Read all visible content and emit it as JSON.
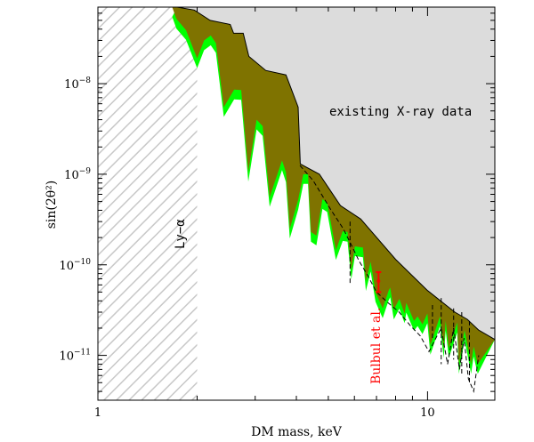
{
  "chart_data": {
    "type": "area",
    "title": "",
    "xlabel": "DM mass, keV",
    "ylabel": "sin(2θ²)",
    "xscale": "log",
    "yscale": "log",
    "xlim": [
      1.0,
      16.0
    ],
    "ylim": [
      3.2e-12,
      7e-08
    ],
    "x_ticks": [
      {
        "value": 1,
        "label": "1"
      },
      {
        "value": 10,
        "label": "10"
      }
    ],
    "y_ticks": [
      {
        "value": 1e-08,
        "base": "10",
        "exp": "−8"
      },
      {
        "value": 1e-09,
        "base": "10",
        "exp": "−9"
      },
      {
        "value": 1e-10,
        "base": "10",
        "exp": "−10"
      },
      {
        "value": 1e-11,
        "base": "10",
        "exp": "−11"
      }
    ],
    "annotations": {
      "xray": "existing X-ray data",
      "lya": "Ly−α",
      "bulbul": "Bulbul et al."
    },
    "colors": {
      "xray_fill": "#dcdcdc",
      "olive": "#7f7300",
      "green": "#00ff00",
      "hatch": "#c8c8c8",
      "red": "#ff0000"
    },
    "lya_bound": {
      "x_max": 2.0,
      "label": "Ly−α"
    },
    "xray_exclusion": {
      "name": "existing X-ray data",
      "boundary": [
        [
          1.74,
          7e-08
        ],
        [
          1.96,
          6.5e-08
        ],
        [
          2.19,
          5e-08
        ],
        [
          2.52,
          4.5e-08
        ],
        [
          2.58,
          3.6e-08
        ],
        [
          2.76,
          3.6e-08
        ],
        [
          2.87,
          2e-08
        ],
        [
          3.23,
          1.4e-08
        ],
        [
          3.72,
          1.25e-08
        ],
        [
          4.05,
          5.5e-09
        ],
        [
          4.11,
          1.3e-09
        ],
        [
          4.7,
          1e-09
        ],
        [
          5.44,
          4.5e-10
        ],
        [
          6.27,
          3.2e-10
        ],
        [
          8.0,
          1.15e-10
        ],
        [
          10.0,
          5.2e-11
        ],
        [
          12.1,
          3e-11
        ],
        [
          13.2,
          2.5e-11
        ],
        [
          14.3,
          1.9e-11
        ],
        [
          16.0,
          1.5e-11
        ]
      ]
    },
    "olive_band": {
      "name": "model band",
      "lower": [
        [
          1.68,
          7e-08
        ],
        [
          1.73,
          5.2e-08
        ],
        [
          1.85,
          3.9e-08
        ],
        [
          2.0,
          1.9e-08
        ],
        [
          2.1,
          3e-08
        ],
        [
          2.2,
          3.4e-08
        ],
        [
          2.28,
          2.8e-08
        ],
        [
          2.41,
          5.5e-09
        ],
        [
          2.59,
          8.6e-09
        ],
        [
          2.72,
          8.5e-09
        ],
        [
          2.86,
          1.06e-09
        ],
        [
          3.03,
          4e-09
        ],
        [
          3.16,
          3.4e-09
        ],
        [
          3.32,
          5.6e-10
        ],
        [
          3.62,
          1.42e-09
        ],
        [
          3.72,
          1.05e-09
        ],
        [
          3.82,
          2.5e-10
        ],
        [
          4.05,
          5.2e-10
        ],
        [
          4.2,
          1e-09
        ],
        [
          4.34,
          1e-09
        ],
        [
          4.43,
          2.3e-10
        ],
        [
          4.6,
          2.1e-10
        ],
        [
          4.8,
          5.3e-10
        ],
        [
          4.96,
          4.9e-10
        ],
        [
          5.27,
          1.45e-10
        ],
        [
          5.53,
          2.35e-10
        ],
        [
          5.72,
          2.3e-10
        ],
        [
          5.87,
          8.8e-11
        ],
        [
          6.02,
          1.6e-10
        ],
        [
          6.37,
          1.55e-10
        ],
        [
          6.5,
          6.6e-11
        ],
        [
          6.72,
          1.08e-10
        ],
        [
          6.95,
          5e-11
        ],
        [
          7.31,
          3.3e-11
        ],
        [
          7.62,
          5.2e-11
        ],
        [
          7.7,
          5.6e-11
        ],
        [
          7.9,
          3.2e-11
        ],
        [
          8.21,
          4.2e-11
        ],
        [
          8.52,
          2.9e-11
        ],
        [
          8.62,
          3.8e-11
        ],
        [
          9.1,
          2.4e-11
        ],
        [
          9.33,
          2.7e-11
        ],
        [
          9.65,
          2.2e-11
        ],
        [
          9.99,
          2.9e-11
        ],
        [
          10.2,
          1.3e-11
        ],
        [
          10.9,
          2.7e-11
        ],
        [
          11.2,
          1.2e-11
        ],
        [
          11.35,
          2.4e-11
        ],
        [
          11.6,
          1.2e-11
        ],
        [
          12.3,
          2.3e-11
        ],
        [
          12.45,
          8e-12
        ],
        [
          12.95,
          1.9e-11
        ],
        [
          13.4,
          1e-11
        ],
        [
          13.55,
          8e-12
        ],
        [
          13.8,
          1.25e-11
        ],
        [
          14.2,
          8e-12
        ]
      ],
      "green_pad": 1.28
    },
    "dashed_curve": {
      "name": "dashed model",
      "points": [
        [
          4.1,
          1.25e-09
        ],
        [
          4.5,
          8.5e-10
        ],
        [
          5.1,
          4e-10
        ],
        [
          5.55,
          2.5e-10
        ],
        [
          5.9,
          1.6e-10
        ],
        [
          6.2,
          1.1e-10
        ],
        [
          6.6,
          7.5e-11
        ],
        [
          7.0,
          5e-11
        ],
        [
          7.6,
          3.8e-11
        ],
        [
          8.2,
          3e-11
        ],
        [
          8.9,
          2.1e-11
        ],
        [
          9.5,
          1.65e-11
        ],
        [
          10.1,
          1.1e-11
        ],
        [
          10.6,
          1.55e-11
        ],
        [
          11.0,
          2e-11
        ],
        [
          11.5,
          8e-12
        ],
        [
          12.0,
          2e-11
        ],
        [
          12.5,
          7e-12
        ],
        [
          12.9,
          1.55e-11
        ],
        [
          13.3,
          5.5e-12
        ],
        [
          13.8,
          4e-12
        ],
        [
          14.3,
          1e-11
        ]
      ],
      "spikes": [
        [
          [
            5.82,
            3e-10
          ],
          [
            5.82,
            6.2e-11
          ]
        ],
        [
          [
            10.35,
            3.6e-11
          ],
          [
            10.35,
            1.5e-11
          ]
        ],
        [
          [
            11.0,
            4.3e-11
          ],
          [
            11.0,
            8e-12
          ]
        ],
        [
          [
            12.0,
            3.3e-11
          ],
          [
            12.0,
            9e-12
          ]
        ],
        [
          [
            12.7,
            3e-11
          ],
          [
            12.7,
            6e-12
          ]
        ],
        [
          [
            13.4,
            2.4e-11
          ],
          [
            13.4,
            5e-12
          ]
        ]
      ]
    },
    "bulbul_point": {
      "name": "Bulbul et al.",
      "x": 7.1,
      "y": 6.6e-11,
      "y_low": 5e-11,
      "y_high": 8.3e-11
    }
  }
}
